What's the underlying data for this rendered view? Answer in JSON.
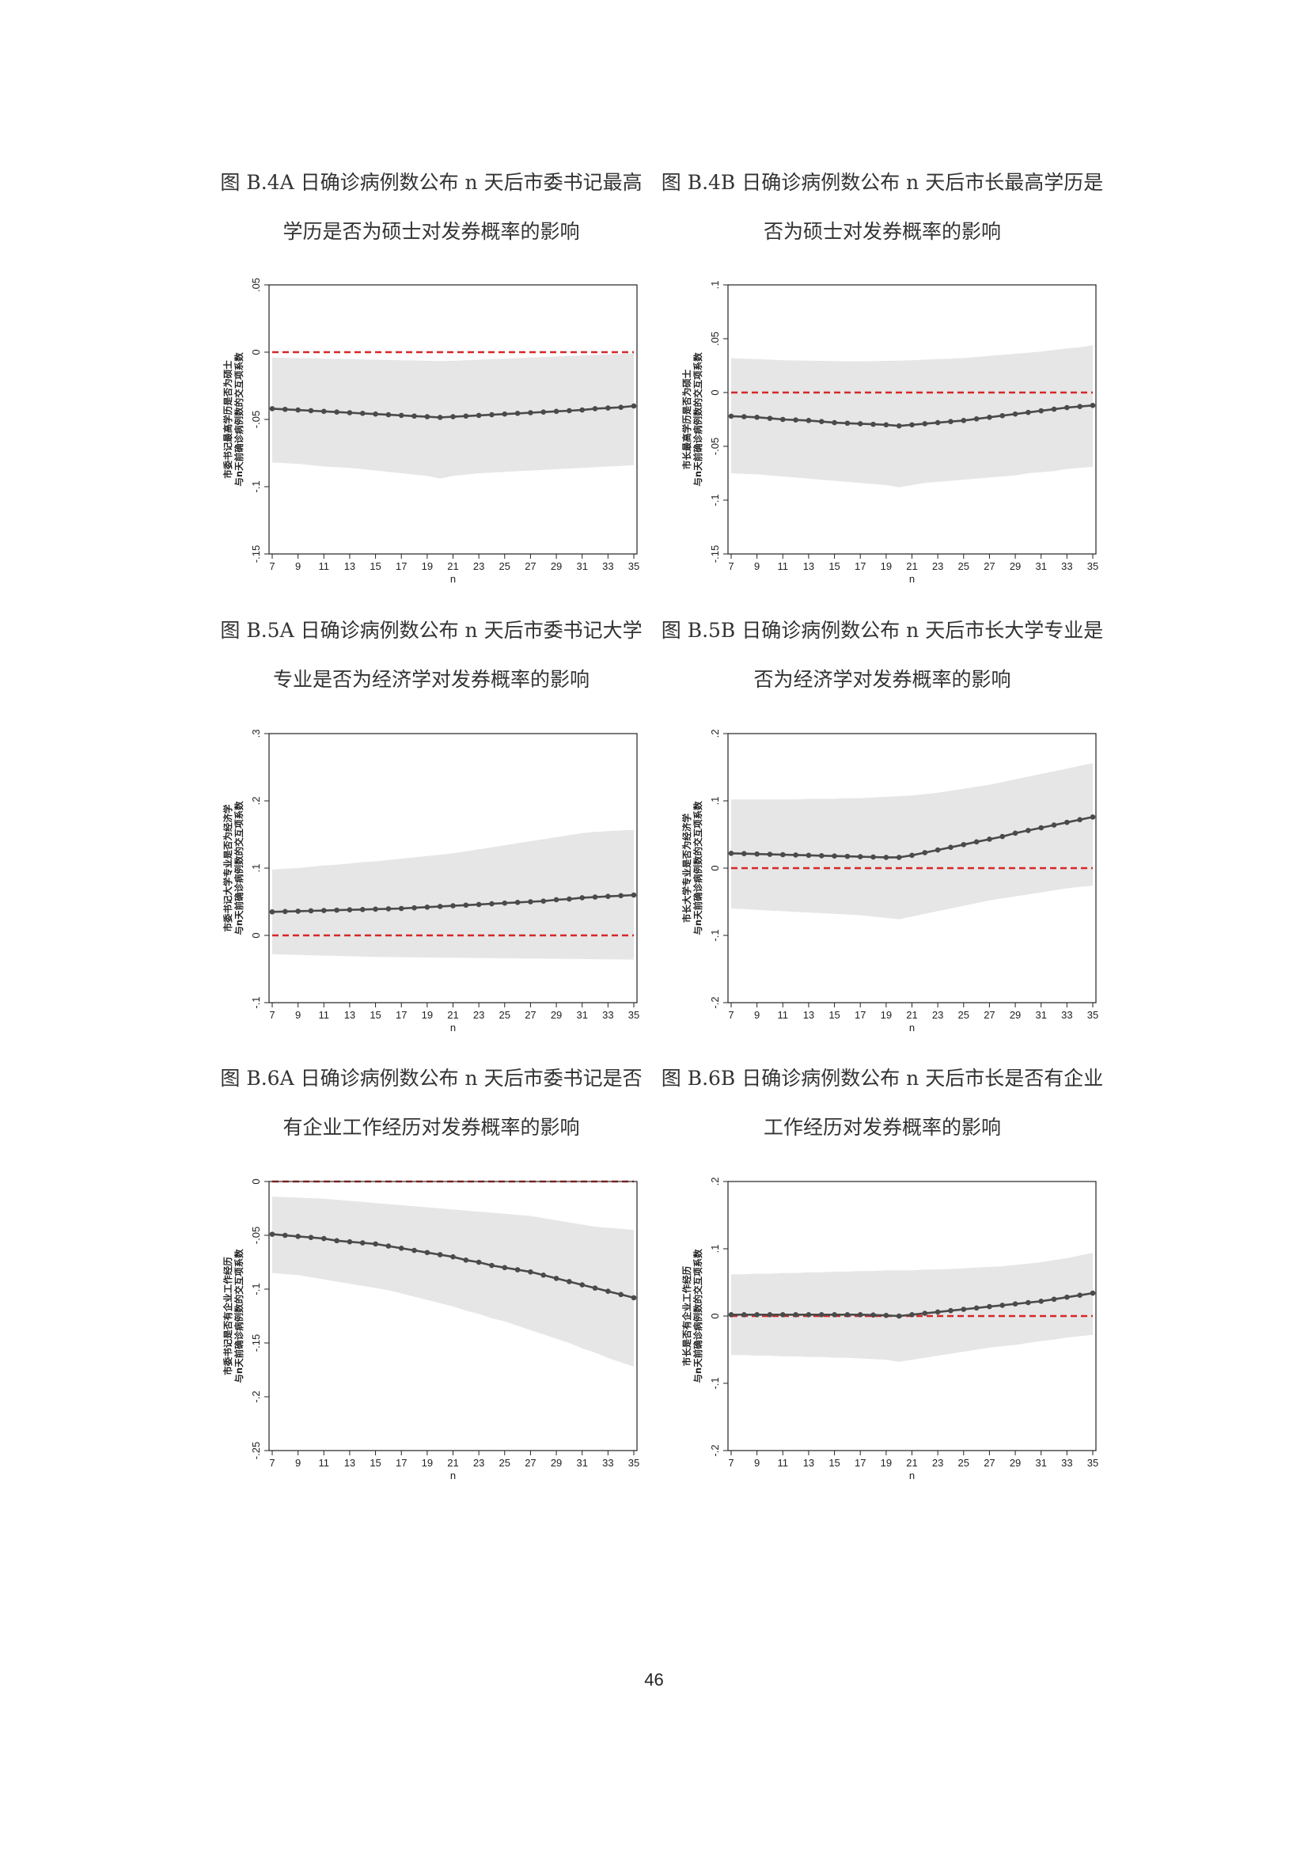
{
  "page_number": "46",
  "panels": [
    {
      "caption_line1": "图 B.4A  日确诊病例数公布 n 天后市委书记最高",
      "caption_line2": "学历是否为硕士对发券概率的影响"
    },
    {
      "caption_line1": "图 B.4B  日确诊病例数公布 n 天后市长最高学历是",
      "caption_line2": "否为硕士对发券概率的影响"
    },
    {
      "caption_line1": "图 B.5A  日确诊病例数公布 n 天后市委书记大学",
      "caption_line2": "专业是否为经济学对发券概率的影响"
    },
    {
      "caption_line1": "图 B.5B  日确诊病例数公布 n 天后市长大学专业是",
      "caption_line2": "否为经济学对发券概率的影响"
    },
    {
      "caption_line1": "图 B.6A  日确诊病例数公布 n 天后市委书记是否",
      "caption_line2": "有企业工作经历对发券概率的影响"
    },
    {
      "caption_line1": "图 B.6B  日确诊病例数公布 n 天后市长是否有企业",
      "caption_line2": "工作经历对发券概率的影响"
    }
  ],
  "colors": {
    "ci_band": "#e6e6e6",
    "line": "#4a4a4a",
    "zero_line": "#d62728",
    "axis": "#222222"
  },
  "chart_data": [
    {
      "type": "line",
      "xlabel": "n",
      "ylabel_line1": "市委书记最高学历是否为硕士",
      "ylabel_line2": "与n天前确诊病例数的交互项系数",
      "x": [
        7,
        8,
        9,
        10,
        11,
        12,
        13,
        14,
        15,
        16,
        17,
        18,
        19,
        20,
        21,
        22,
        23,
        24,
        25,
        26,
        27,
        28,
        29,
        30,
        31,
        32,
        33,
        34,
        35
      ],
      "x_ticks": [
        7,
        9,
        11,
        13,
        15,
        17,
        19,
        21,
        23,
        25,
        27,
        29,
        31,
        33,
        35
      ],
      "ylim": [
        -0.15,
        0.05
      ],
      "y_ticks": [
        0.05,
        0,
        -0.05,
        -0.1,
        -0.15
      ],
      "y_tick_labels": [
        ".05",
        "0",
        "-.05",
        "-.1",
        "-.15"
      ],
      "series": [
        {
          "values": [
            -0.042,
            -0.0425,
            -0.043,
            -0.0435,
            -0.044,
            -0.0445,
            -0.045,
            -0.0455,
            -0.046,
            -0.0465,
            -0.047,
            -0.0475,
            -0.048,
            -0.0485,
            -0.048,
            -0.0475,
            -0.047,
            -0.0465,
            -0.046,
            -0.0455,
            -0.045,
            -0.0445,
            -0.044,
            -0.0435,
            -0.043,
            -0.042,
            -0.0415,
            -0.041,
            -0.04
          ],
          "ci_low": [
            -0.082,
            -0.0825,
            -0.083,
            -0.084,
            -0.085,
            -0.0855,
            -0.086,
            -0.087,
            -0.088,
            -0.089,
            -0.09,
            -0.091,
            -0.092,
            -0.094,
            -0.092,
            -0.091,
            -0.09,
            -0.0895,
            -0.089,
            -0.0885,
            -0.088,
            -0.0875,
            -0.087,
            -0.0865,
            -0.086,
            -0.0855,
            -0.085,
            -0.0845,
            -0.084
          ],
          "ci_high": [
            -0.004,
            -0.0042,
            -0.0044,
            -0.0046,
            -0.0048,
            -0.005,
            -0.0052,
            -0.0054,
            -0.0056,
            -0.0058,
            -0.006,
            -0.0062,
            -0.0064,
            -0.0066,
            -0.0064,
            -0.006,
            -0.0056,
            -0.0052,
            -0.0048,
            -0.0044,
            -0.004,
            -0.0036,
            -0.0032,
            -0.0028,
            -0.0024,
            -0.002,
            -0.0016,
            -0.0012,
            -0.001
          ]
        }
      ]
    },
    {
      "type": "line",
      "xlabel": "n",
      "ylabel_line1": "市长最高学历是否为硕士",
      "ylabel_line2": "与n天前确诊病例数的交互项系数",
      "x": [
        7,
        8,
        9,
        10,
        11,
        12,
        13,
        14,
        15,
        16,
        17,
        18,
        19,
        20,
        21,
        22,
        23,
        24,
        25,
        26,
        27,
        28,
        29,
        30,
        31,
        32,
        33,
        34,
        35
      ],
      "x_ticks": [
        7,
        9,
        11,
        13,
        15,
        17,
        19,
        21,
        23,
        25,
        27,
        29,
        31,
        33,
        35
      ],
      "ylim": [
        -0.15,
        0.1
      ],
      "y_ticks": [
        0.1,
        0.05,
        0,
        -0.05,
        -0.1,
        -0.15
      ],
      "y_tick_labels": [
        ".1",
        ".05",
        "0",
        "-.05",
        "-.1",
        "-.15"
      ],
      "series": [
        {
          "values": [
            -0.022,
            -0.0225,
            -0.023,
            -0.024,
            -0.025,
            -0.0255,
            -0.026,
            -0.027,
            -0.028,
            -0.0285,
            -0.029,
            -0.0295,
            -0.03,
            -0.031,
            -0.03,
            -0.029,
            -0.028,
            -0.027,
            -0.026,
            -0.0245,
            -0.023,
            -0.0215,
            -0.02,
            -0.0185,
            -0.017,
            -0.0155,
            -0.014,
            -0.013,
            -0.012
          ],
          "ci_low": [
            -0.075,
            -0.0755,
            -0.076,
            -0.077,
            -0.078,
            -0.079,
            -0.08,
            -0.081,
            -0.082,
            -0.083,
            -0.084,
            -0.085,
            -0.086,
            -0.088,
            -0.086,
            -0.084,
            -0.083,
            -0.082,
            -0.081,
            -0.08,
            -0.079,
            -0.078,
            -0.077,
            -0.075,
            -0.074,
            -0.073,
            -0.071,
            -0.07,
            -0.069
          ],
          "ci_high": [
            0.032,
            0.0315,
            0.031,
            0.0305,
            0.03,
            0.0298,
            0.0296,
            0.0294,
            0.0292,
            0.029,
            0.029,
            0.0292,
            0.0294,
            0.0296,
            0.03,
            0.0305,
            0.031,
            0.0315,
            0.032,
            0.033,
            0.034,
            0.035,
            0.036,
            0.037,
            0.038,
            0.0395,
            0.041,
            0.042,
            0.044
          ]
        }
      ]
    },
    {
      "type": "line",
      "xlabel": "n",
      "ylabel_line1": "市委书记大学专业是否为经济学",
      "ylabel_line2": "与n天前确诊病例数的交互项系数",
      "x": [
        7,
        8,
        9,
        10,
        11,
        12,
        13,
        14,
        15,
        16,
        17,
        18,
        19,
        20,
        21,
        22,
        23,
        24,
        25,
        26,
        27,
        28,
        29,
        30,
        31,
        32,
        33,
        34,
        35
      ],
      "x_ticks": [
        7,
        9,
        11,
        13,
        15,
        17,
        19,
        21,
        23,
        25,
        27,
        29,
        31,
        33,
        35
      ],
      "ylim": [
        -0.1,
        0.3
      ],
      "y_ticks": [
        0.3,
        0.2,
        0.1,
        0,
        -0.1
      ],
      "y_tick_labels": [
        ".3",
        ".2",
        ".1",
        "0",
        "-.1"
      ],
      "series": [
        {
          "values": [
            0.035,
            0.0355,
            0.036,
            0.0365,
            0.037,
            0.0375,
            0.038,
            0.0385,
            0.039,
            0.0395,
            0.04,
            0.041,
            0.042,
            0.043,
            0.044,
            0.045,
            0.046,
            0.047,
            0.048,
            0.049,
            0.05,
            0.051,
            0.053,
            0.054,
            0.056,
            0.057,
            0.058,
            0.059,
            0.06
          ],
          "ci_low": [
            -0.028,
            -0.0285,
            -0.029,
            -0.0295,
            -0.03,
            -0.0305,
            -0.031,
            -0.0315,
            -0.032,
            -0.0322,
            -0.0324,
            -0.0326,
            -0.0328,
            -0.033,
            -0.0332,
            -0.0334,
            -0.0336,
            -0.0338,
            -0.034,
            -0.0342,
            -0.0344,
            -0.0346,
            -0.0348,
            -0.035,
            -0.0352,
            -0.0354,
            -0.0356,
            -0.0358,
            -0.036
          ],
          "ci_high": [
            0.098,
            0.099,
            0.1,
            0.102,
            0.104,
            0.105,
            0.107,
            0.109,
            0.11,
            0.112,
            0.114,
            0.116,
            0.118,
            0.12,
            0.122,
            0.125,
            0.128,
            0.131,
            0.134,
            0.137,
            0.14,
            0.143,
            0.146,
            0.149,
            0.152,
            0.154,
            0.155,
            0.156,
            0.157
          ]
        }
      ]
    },
    {
      "type": "line",
      "xlabel": "n",
      "ylabel_line1": "市长大学专业是否为经济学",
      "ylabel_line2": "与n天前确诊病例数的交互项系数",
      "x": [
        7,
        8,
        9,
        10,
        11,
        12,
        13,
        14,
        15,
        16,
        17,
        18,
        19,
        20,
        21,
        22,
        23,
        24,
        25,
        26,
        27,
        28,
        29,
        30,
        31,
        32,
        33,
        34,
        35
      ],
      "x_ticks": [
        7,
        9,
        11,
        13,
        15,
        17,
        19,
        21,
        23,
        25,
        27,
        29,
        31,
        33,
        35
      ],
      "ylim": [
        -0.2,
        0.2
      ],
      "y_ticks": [
        0.2,
        0.1,
        0,
        -0.1,
        -0.2
      ],
      "y_tick_labels": [
        ".2",
        ".1",
        "0",
        "-.1",
        "-.2"
      ],
      "series": [
        {
          "values": [
            0.022,
            0.0215,
            0.021,
            0.0205,
            0.02,
            0.0195,
            0.019,
            0.0185,
            0.018,
            0.0175,
            0.017,
            0.0165,
            0.016,
            0.016,
            0.019,
            0.023,
            0.027,
            0.031,
            0.035,
            0.039,
            0.043,
            0.047,
            0.052,
            0.056,
            0.06,
            0.064,
            0.068,
            0.072,
            0.076
          ],
          "ci_low": [
            -0.06,
            -0.061,
            -0.062,
            -0.063,
            -0.064,
            -0.065,
            -0.066,
            -0.067,
            -0.068,
            -0.069,
            -0.07,
            -0.072,
            -0.074,
            -0.076,
            -0.072,
            -0.068,
            -0.064,
            -0.06,
            -0.056,
            -0.052,
            -0.048,
            -0.045,
            -0.042,
            -0.039,
            -0.036,
            -0.033,
            -0.03,
            -0.028,
            -0.026
          ],
          "ci_high": [
            0.102,
            0.102,
            0.102,
            0.102,
            0.102,
            0.102,
            0.103,
            0.103,
            0.103,
            0.104,
            0.104,
            0.105,
            0.106,
            0.107,
            0.108,
            0.11,
            0.112,
            0.115,
            0.118,
            0.121,
            0.124,
            0.128,
            0.132,
            0.136,
            0.14,
            0.144,
            0.148,
            0.152,
            0.156
          ]
        }
      ]
    },
    {
      "type": "line",
      "xlabel": "n",
      "ylabel_line1": "市委书记是否有企业工作经历",
      "ylabel_line2": "与n天前确诊病例数的交互项系数",
      "x": [
        7,
        8,
        9,
        10,
        11,
        12,
        13,
        14,
        15,
        16,
        17,
        18,
        19,
        20,
        21,
        22,
        23,
        24,
        25,
        26,
        27,
        28,
        29,
        30,
        31,
        32,
        33,
        34,
        35
      ],
      "x_ticks": [
        7,
        9,
        11,
        13,
        15,
        17,
        19,
        21,
        23,
        25,
        27,
        29,
        31,
        33,
        35
      ],
      "ylim": [
        -0.25,
        0
      ],
      "y_ticks": [
        0,
        -0.05,
        -0.1,
        -0.15,
        -0.2,
        -0.25
      ],
      "y_tick_labels": [
        "0",
        "-.05",
        "-.1",
        "-.15",
        "-.2",
        "-.25"
      ],
      "series": [
        {
          "values": [
            -0.049,
            -0.05,
            -0.051,
            -0.052,
            -0.053,
            -0.055,
            -0.056,
            -0.057,
            -0.058,
            -0.06,
            -0.062,
            -0.064,
            -0.066,
            -0.068,
            -0.07,
            -0.073,
            -0.075,
            -0.078,
            -0.08,
            -0.082,
            -0.084,
            -0.087,
            -0.09,
            -0.093,
            -0.096,
            -0.099,
            -0.102,
            -0.105,
            -0.108
          ],
          "ci_low": [
            -0.085,
            -0.086,
            -0.087,
            -0.089,
            -0.091,
            -0.093,
            -0.095,
            -0.097,
            -0.099,
            -0.101,
            -0.104,
            -0.107,
            -0.11,
            -0.113,
            -0.116,
            -0.12,
            -0.123,
            -0.127,
            -0.13,
            -0.134,
            -0.138,
            -0.142,
            -0.146,
            -0.15,
            -0.155,
            -0.159,
            -0.164,
            -0.168,
            -0.172
          ],
          "ci_high": [
            -0.014,
            -0.0145,
            -0.015,
            -0.0155,
            -0.016,
            -0.017,
            -0.018,
            -0.019,
            -0.02,
            -0.021,
            -0.022,
            -0.023,
            -0.024,
            -0.025,
            -0.026,
            -0.027,
            -0.028,
            -0.029,
            -0.03,
            -0.031,
            -0.032,
            -0.034,
            -0.036,
            -0.038,
            -0.04,
            -0.042,
            -0.043,
            -0.044,
            -0.045
          ]
        }
      ]
    },
    {
      "type": "line",
      "xlabel": "n",
      "ylabel_line1": "市长是否有企业工作经历",
      "ylabel_line2": "与n天前确诊病例数的交互项系数",
      "x": [
        7,
        8,
        9,
        10,
        11,
        12,
        13,
        14,
        15,
        16,
        17,
        18,
        19,
        20,
        21,
        22,
        23,
        24,
        25,
        26,
        27,
        28,
        29,
        30,
        31,
        32,
        33,
        34,
        35
      ],
      "x_ticks": [
        7,
        9,
        11,
        13,
        15,
        17,
        19,
        21,
        23,
        25,
        27,
        29,
        31,
        33,
        35
      ],
      "ylim": [
        -0.2,
        0.2
      ],
      "y_ticks": [
        0.2,
        0.1,
        0,
        -0.1,
        -0.2
      ],
      "y_tick_labels": [
        ".2",
        ".1",
        "0",
        "-.1",
        "-.2"
      ],
      "series": [
        {
          "values": [
            0.002,
            0.002,
            0.002,
            0.002,
            0.002,
            0.002,
            0.002,
            0.002,
            0.002,
            0.002,
            0.002,
            0.0015,
            0.001,
            0.0,
            0.002,
            0.004,
            0.006,
            0.008,
            0.01,
            0.012,
            0.014,
            0.016,
            0.018,
            0.02,
            0.022,
            0.025,
            0.028,
            0.031,
            0.034
          ],
          "ci_low": [
            -0.058,
            -0.058,
            -0.059,
            -0.059,
            -0.06,
            -0.06,
            -0.061,
            -0.061,
            -0.062,
            -0.062,
            -0.063,
            -0.064,
            -0.065,
            -0.068,
            -0.065,
            -0.062,
            -0.059,
            -0.056,
            -0.053,
            -0.05,
            -0.047,
            -0.045,
            -0.043,
            -0.04,
            -0.037,
            -0.035,
            -0.032,
            -0.03,
            -0.028
          ],
          "ci_high": [
            0.062,
            0.062,
            0.063,
            0.063,
            0.064,
            0.064,
            0.065,
            0.065,
            0.066,
            0.066,
            0.067,
            0.067,
            0.068,
            0.068,
            0.068,
            0.069,
            0.069,
            0.07,
            0.071,
            0.072,
            0.073,
            0.074,
            0.076,
            0.078,
            0.08,
            0.083,
            0.086,
            0.09,
            0.094
          ]
        }
      ]
    }
  ]
}
